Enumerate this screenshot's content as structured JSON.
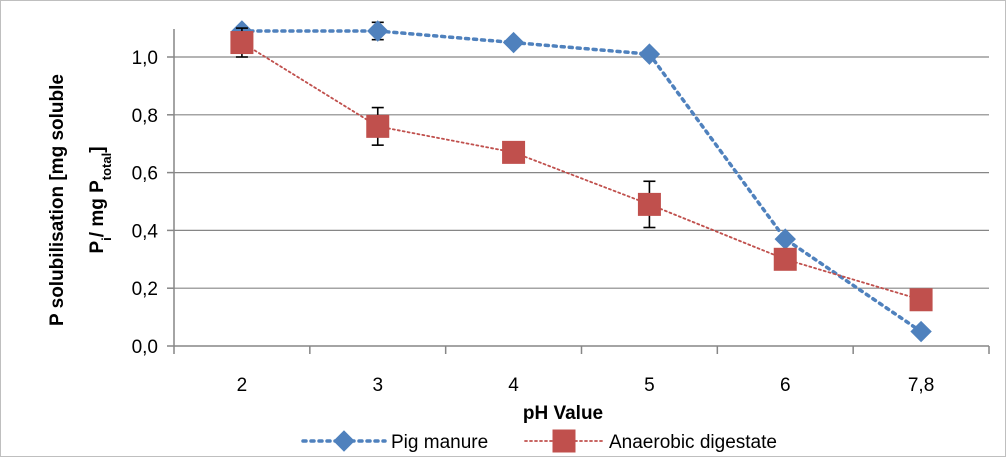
{
  "chart_data": {
    "type": "line",
    "categories": [
      "2",
      "3",
      "4",
      "5",
      "6",
      "7,8"
    ],
    "xlabel": "pH Value",
    "ylabel_line1": "P solubilisation [mg soluble",
    "ylabel_line2": {
      "p1": "P",
      "sub1": "i",
      "p2": "/ mg P",
      "sub2": "total",
      "p3": "]"
    },
    "ylim": [
      0,
      1.1
    ],
    "yticks": [
      0,
      0.2,
      0.4,
      0.6,
      0.8,
      1.0
    ],
    "ytick_labels": [
      "0,0",
      "0,2",
      "0,4",
      "0,6",
      "0,8",
      "1,0"
    ],
    "grid": "horizontal",
    "legend_position": "bottom",
    "series": [
      {
        "name": "Pig manure",
        "values": [
          1.09,
          1.09,
          1.05,
          1.01,
          0.37,
          0.05
        ],
        "errors": [
          0,
          0.03,
          0,
          0,
          0,
          0
        ],
        "color": "#4f81bd",
        "marker": "diamond",
        "line_style": "dotted"
      },
      {
        "name": "Anaerobic digestate",
        "values": [
          1.05,
          0.76,
          0.67,
          0.49,
          0.3,
          0.16
        ],
        "errors": [
          0.05,
          0.065,
          0,
          0.08,
          0,
          0
        ],
        "color": "#c0504d",
        "marker": "square",
        "line_style": "dotted"
      }
    ]
  }
}
